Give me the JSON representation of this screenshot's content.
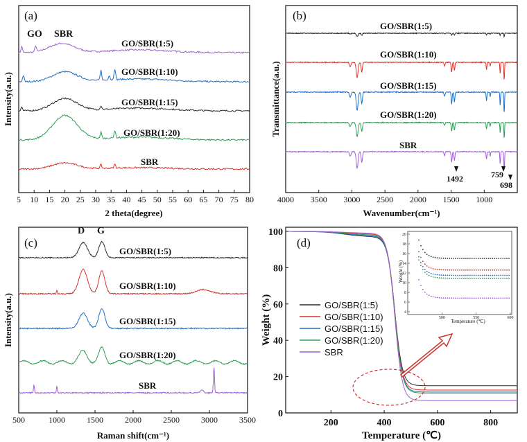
{
  "colors": {
    "black": "#2b2b2b",
    "red": "#d9342b",
    "blue": "#1f6fc5",
    "green": "#2f9d55",
    "purple": "#a15fd4",
    "arrow": "#c8322c"
  },
  "chart_data": [
    {
      "id": "a",
      "type": "line",
      "panel_label": "(a)",
      "xlabel": "2 theta(degree)",
      "ylabel": "Intensity(a.u.)",
      "xlim": [
        5,
        80
      ],
      "xticks": [
        "5",
        "10",
        "15",
        "20",
        "25",
        "30",
        "35",
        "40",
        "45",
        "50",
        "55",
        "60",
        "65",
        "70",
        "75",
        "80"
      ],
      "annotations": [
        "GO",
        "SBR"
      ],
      "series": [
        {
          "name": "GO/SBR(1:5)",
          "color": "purple",
          "baseline": 4,
          "hump_center": 19,
          "hump_height": 0.6,
          "peaks": [
            [
              10.5,
              0.5
            ],
            [
              6,
              0.5
            ]
          ]
        },
        {
          "name": "GO/SBR(1:10)",
          "color": "blue",
          "baseline": 3,
          "hump_center": 20,
          "hump_height": 0.65,
          "peaks": [
            [
              6.5,
              0.5
            ],
            [
              31.7,
              0.8
            ],
            [
              36.2,
              0.9
            ],
            [
              34.4,
              0.4
            ]
          ]
        },
        {
          "name": "GO/SBR(1:15)",
          "color": "black",
          "baseline": 2,
          "hump_center": 20,
          "hump_height": 0.8,
          "peaks": [
            [
              6,
              0.3
            ],
            [
              31.7,
              0.3
            ]
          ]
        },
        {
          "name": "GO/SBR(1:20)",
          "color": "green",
          "baseline": 1,
          "hump_center": 20,
          "hump_height": 1.6,
          "peaks": [
            [
              31.7,
              0.5
            ],
            [
              36.2,
              0.6
            ]
          ]
        },
        {
          "name": "SBR",
          "color": "red",
          "baseline": 0,
          "hump_center": 20,
          "hump_height": 0.4,
          "peaks": [
            [
              31.7,
              0.3
            ],
            [
              36.2,
              0.3
            ]
          ]
        }
      ]
    },
    {
      "id": "b",
      "type": "line",
      "panel_label": "(b)",
      "xlabel": "Wavenumber(cm⁻¹)",
      "ylabel": "Transmittance(a.u.)",
      "xlim": [
        4000,
        500
      ],
      "xticks": [
        "4000",
        "3500",
        "3000",
        "2500",
        "2000",
        "1500",
        "1000"
      ],
      "annotations": [
        "1492",
        "759",
        "698"
      ],
      "series": [
        {
          "name": "GO/SBR(1:5)",
          "color": "black",
          "depth": 0.2
        },
        {
          "name": "GO/SBR(1:10)",
          "color": "red",
          "depth": 1
        },
        {
          "name": "GO/SBR(1:15)",
          "color": "blue",
          "depth": 1.2
        },
        {
          "name": "GO/SBR(1:20)",
          "color": "green",
          "depth": 0.9
        },
        {
          "name": "SBR",
          "color": "purple",
          "depth": 1.1
        }
      ]
    },
    {
      "id": "c",
      "type": "line",
      "panel_label": "(c)",
      "xlabel": "Raman shift(cm⁻¹)",
      "ylabel": "Intensity(a.u.)",
      "xlim": [
        500,
        3500
      ],
      "xticks": [
        "500",
        "1000",
        "1500",
        "2000",
        "2500",
        "3000",
        "3500"
      ],
      "annotations": [
        "D",
        "G"
      ],
      "series": [
        {
          "name": "GO/SBR(1:5)",
          "color": "black",
          "d_height": 1.0,
          "g_height": 1.05
        },
        {
          "name": "GO/SBR(1:10)",
          "color": "red",
          "d_height": 1.6,
          "g_height": 1.5
        },
        {
          "name": "GO/SBR(1:15)",
          "color": "blue",
          "d_height": 1.0,
          "g_height": 1.3
        },
        {
          "name": "GO/SBR(1:20)",
          "color": "green",
          "d_height": 0.7,
          "g_height": 0.9
        },
        {
          "name": "SBR",
          "color": "purple",
          "d_height": 0.0,
          "g_height": 0.0
        }
      ]
    },
    {
      "id": "d",
      "type": "line",
      "panel_label": "(d)",
      "xlabel": "Temperature (℃)",
      "ylabel": "Weight (%)",
      "xlim": [
        30,
        900
      ],
      "ylim": [
        0,
        100
      ],
      "xticks": [
        "200",
        "400",
        "600",
        "800"
      ],
      "yticks": [
        "0",
        "20",
        "40",
        "60",
        "80",
        "100"
      ],
      "legend_position": "center-left",
      "series": [
        {
          "name": "GO/SBR(1:5)",
          "color": "black",
          "residue": 15.0
        },
        {
          "name": "GO/SBR(1:10)",
          "color": "red",
          "residue": 12.6
        },
        {
          "name": "GO/SBR(1:15)",
          "color": "blue",
          "residue": 11.5
        },
        {
          "name": "GO/SBR(1:20)",
          "color": "green",
          "residue": 10.9
        },
        {
          "name": "SBR",
          "color": "purple",
          "residue": 6.8
        }
      ],
      "inset": {
        "xlabel": "Temperature (℃)",
        "ylabel": "Weight (%)",
        "xlim": [
          460,
          600
        ],
        "ylim": [
          4,
          20
        ],
        "xticks": [
          "500",
          "550",
          "600"
        ],
        "yticks": [
          "4",
          "6",
          "8",
          "10",
          "12",
          "14",
          "16",
          "18",
          "20"
        ]
      }
    }
  ]
}
